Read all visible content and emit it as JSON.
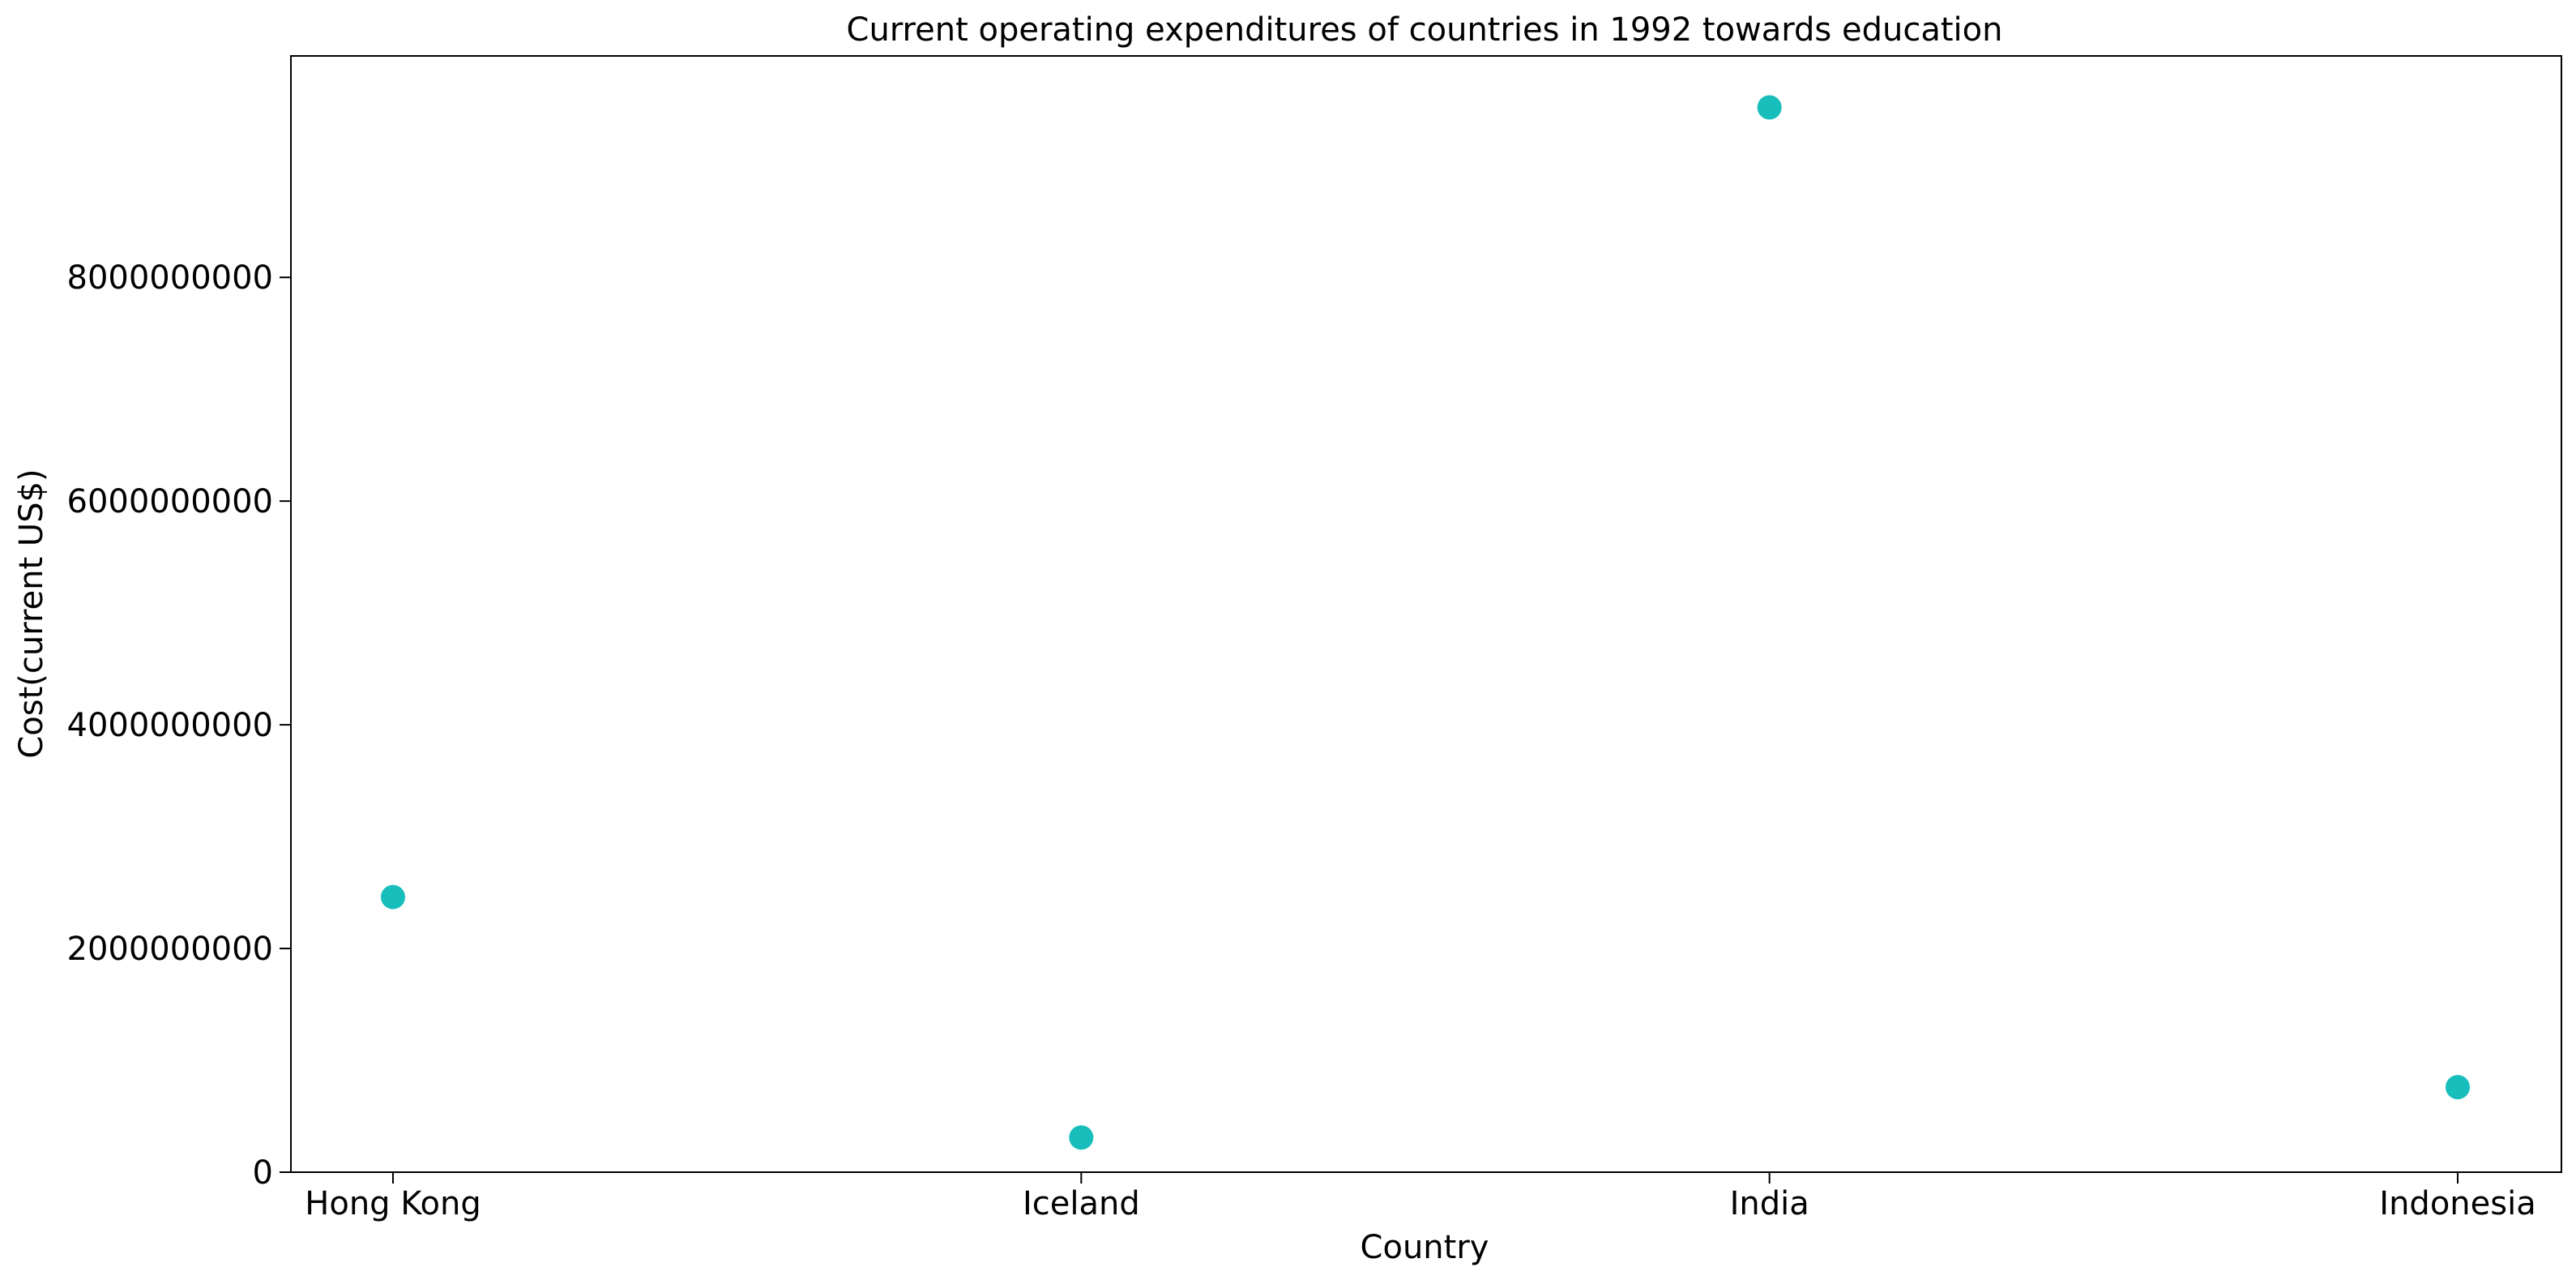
{
  "chart_data": {
    "type": "scatter",
    "title": "Current operating expenditures of countries in 1992 towards education",
    "xlabel": "Country",
    "ylabel": "Cost(current US$)",
    "categories": [
      "Hong Kong",
      "Iceland",
      "India",
      "Indonesia"
    ],
    "series": [
      {
        "values": [
          2460000000,
          310000000,
          9520000000,
          760000000
        ],
        "color": "#17bebb"
      }
    ],
    "ylim": [
      0,
      9980000000
    ],
    "yticks": [
      0,
      2000000000,
      4000000000,
      6000000000,
      8000000000
    ],
    "ytick_labels": [
      "0",
      "2000000000",
      "4000000000",
      "6000000000",
      "8000000000"
    ],
    "grid": false,
    "legend": "none"
  }
}
